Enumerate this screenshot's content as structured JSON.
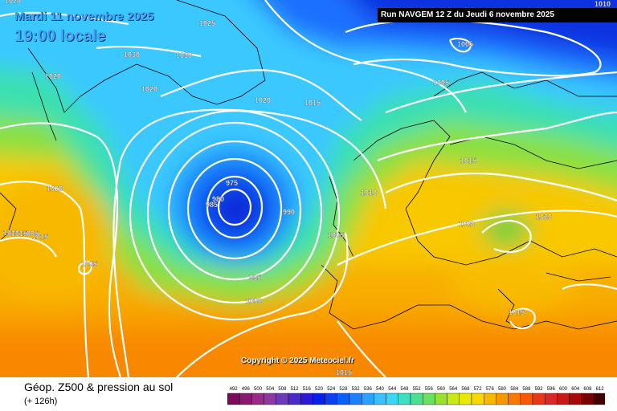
{
  "header": {
    "date": "Mardi 11 novembre 2025",
    "time": "19:00 locale",
    "run": "Run NAVGEM 12 Z du Jeudi 6 novembre 2025"
  },
  "copyright": "Copyright © 2025 Meteociel.fr",
  "legend": {
    "title": "Géop. Z500 & pression au sol",
    "subtitle": "(+ 126h)",
    "scale_values": [
      "492",
      "496",
      "500",
      "504",
      "508",
      "512",
      "516",
      "520",
      "524",
      "528",
      "532",
      "536",
      "540",
      "544",
      "548",
      "552",
      "556",
      "560",
      "564",
      "568",
      "572",
      "576",
      "580",
      "584",
      "588",
      "592",
      "596",
      "600",
      "604",
      "608",
      "612"
    ],
    "scale_colors": [
      "#7a0a5a",
      "#8a1870",
      "#9a2a88",
      "#8a3aa0",
      "#6a3ab8",
      "#4a2ac8",
      "#2a1ad8",
      "#0a20e8",
      "#0a40f0",
      "#0a60f8",
      "#1a80ff",
      "#2aa0ff",
      "#3ac0ff",
      "#3ad8f0",
      "#3ae0c0",
      "#4ae090",
      "#6ae060",
      "#9ae030",
      "#c8e818",
      "#e8e800",
      "#f8d800",
      "#f8b800",
      "#f89800",
      "#f87800",
      "#f85800",
      "#e83818",
      "#d82828",
      "#c81818",
      "#a80808",
      "#780000",
      "#400000"
    ]
  },
  "isobars": [
    "1020",
    "1025",
    "1030",
    "1030",
    "1020",
    "1020",
    "1020",
    "1015",
    "1005",
    "1005",
    "1015",
    "1010",
    "1020",
    "1020",
    "1025",
    "1015",
    "975",
    "980",
    "985",
    "990",
    "1005",
    "995",
    "1000",
    "1015",
    "1015",
    "1010",
    "1005",
    "1015",
    "1020"
  ],
  "colors": {
    "run_box_bg": "#000000",
    "title_color": "#3fa9f5",
    "isobar_color": "#ffffff"
  }
}
